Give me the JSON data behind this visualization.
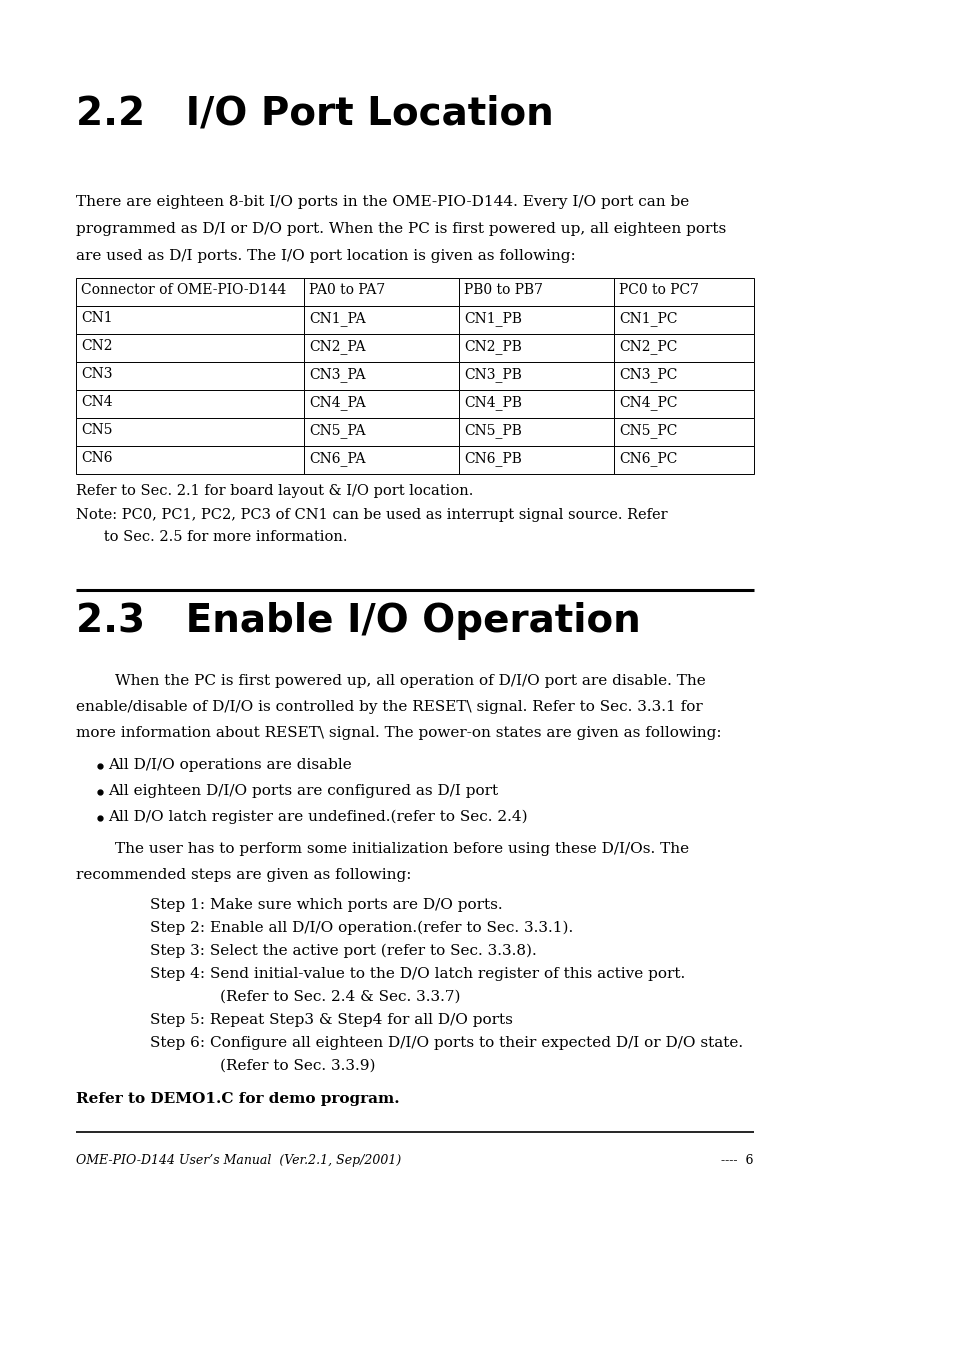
{
  "bg_color": "#ffffff",
  "section_22_title": "2.2   I/O Port Location",
  "section_23_title": "2.3   Enable I/O Operation",
  "table_headers": [
    "Connector of OME-PIO-D144",
    "PA0 to PA7",
    "PB0 to PB7",
    "PC0 to PC7"
  ],
  "table_rows": [
    [
      "CN1",
      "CN1_PA",
      "CN1_PB",
      "CN1_PC"
    ],
    [
      "CN2",
      "CN2_PA",
      "CN2_PB",
      "CN2_PC"
    ],
    [
      "CN3",
      "CN3_PA",
      "CN3_PB",
      "CN3_PC"
    ],
    [
      "CN4",
      "CN4_PA",
      "CN4_PB",
      "CN4_PC"
    ],
    [
      "CN5",
      "CN5_PA",
      "CN5_PB",
      "CN5_PC"
    ],
    [
      "CN6",
      "CN6_PA",
      "CN6_PB",
      "CN6_PC"
    ]
  ],
  "note1": "Refer to Sec. 2.1 for board layout & I/O port location.",
  "bullets": [
    "All D/I/O operations are disable",
    "All eighteen D/I/O ports are configured as D/I port",
    "All D/O latch register are undefined.(refer to Sec. 2.4)"
  ],
  "steps": [
    [
      "Step 1: Make sure which ports are D/O ports.",
      false
    ],
    [
      "Step 2: Enable all D/I/O operation.(refer to Sec. 3.3.1).",
      false
    ],
    [
      "Step 3: Select the active port (refer to Sec. 3.3.8).",
      false
    ],
    [
      "Step 4: Send initial-value to the D/O latch register of this active port.",
      false
    ],
    [
      "(Refer to Sec. 2.4 & Sec. 3.3.7)",
      true
    ],
    [
      "Step 5: Repeat Step3 & Step4 for all D/O ports",
      false
    ],
    [
      "Step 6: Configure all eighteen D/I/O ports to their expected D/I or D/O state.",
      false
    ],
    [
      "(Refer to Sec. 3.3.9)",
      true
    ]
  ],
  "final_note": "Refer to DEMO1.C for demo program.",
  "footer_left": "OME-PIO-D144 User’s Manual  (Ver.2.1, Sep/2001)",
  "footer_right": "----  6"
}
